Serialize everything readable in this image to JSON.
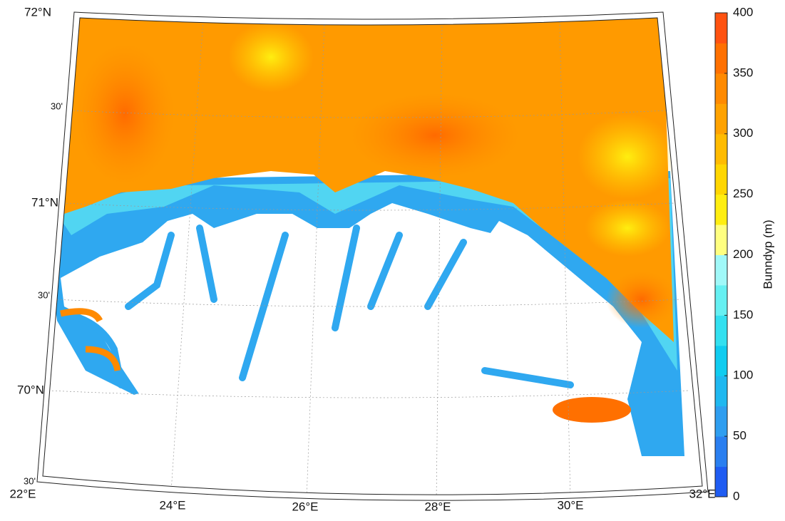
{
  "map": {
    "lat_labels": [
      "72°N",
      "30'",
      "71°N",
      "30'",
      "70°N",
      "30'"
    ],
    "lon_labels": [
      "22°E",
      "24°E",
      "26°E",
      "28°E",
      "30°E",
      "32°E"
    ]
  },
  "colorbar": {
    "label": "Bunndyp (m)",
    "range": [
      0,
      400
    ],
    "ticks": [
      0,
      50,
      100,
      150,
      200,
      250,
      300,
      350,
      400
    ],
    "colors": [
      "#1f5cf2",
      "#2a7ff0",
      "#2f9ef0",
      "#1fb8f0",
      "#10ccf0",
      "#33e0f0",
      "#66f0f2",
      "#a0f8f8",
      "#ffff80",
      "#ffee10",
      "#ffd600",
      "#ffbb00",
      "#ffa200",
      "#ff8a00",
      "#ff7000",
      "#ff5210"
    ]
  }
}
